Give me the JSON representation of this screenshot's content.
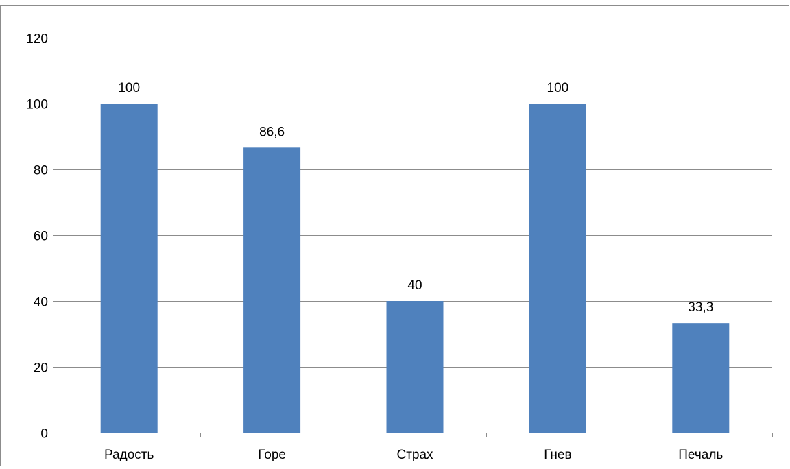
{
  "chart_data": {
    "type": "bar",
    "categories": [
      "Радость",
      "Горе",
      "Страх",
      "Гнев",
      "Печаль"
    ],
    "values": [
      100,
      86.6,
      40,
      100,
      33.3
    ],
    "data_labels": [
      "100",
      "86,6",
      "40",
      "100",
      "33,3"
    ],
    "ylim": [
      0,
      120
    ],
    "y_ticks": [
      0,
      20,
      40,
      60,
      80,
      100,
      120
    ],
    "grid": true,
    "legend": "none",
    "title": "",
    "xlabel": "",
    "ylabel": "",
    "bar_color": "#4F81BD",
    "gridline_color": "#8c8c8c",
    "frame_color": "#8c8c8c"
  }
}
